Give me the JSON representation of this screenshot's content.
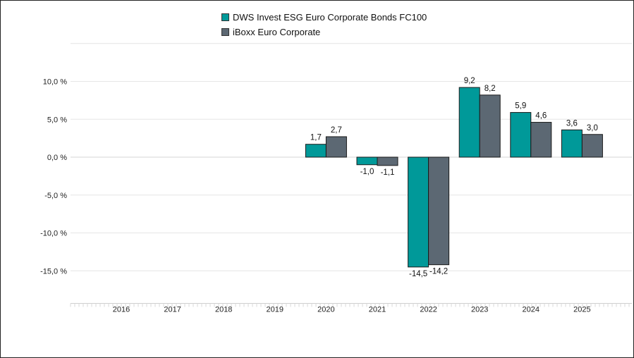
{
  "chart_data": {
    "type": "bar",
    "title": "",
    "xlabel": "",
    "ylabel": "",
    "categories": [
      "2016",
      "2017",
      "2018",
      "2019",
      "2020",
      "2021",
      "2022",
      "2023",
      "2024",
      "2025"
    ],
    "series": [
      {
        "name": "DWS Invest ESG Euro Corporate Bonds FC100",
        "color": "#009999",
        "values": [
          null,
          null,
          null,
          null,
          1.7,
          -1.0,
          -14.5,
          9.2,
          5.9,
          3.6
        ],
        "labels": [
          "",
          "",
          "",
          "",
          "1,7",
          "-1,0",
          "-14,5",
          "9,2",
          "5,9",
          "3,6"
        ]
      },
      {
        "name": "iBoxx Euro Corporate",
        "color": "#5c6873",
        "values": [
          null,
          null,
          null,
          null,
          2.7,
          -1.1,
          -14.2,
          8.2,
          4.6,
          3.0
        ],
        "labels": [
          "",
          "",
          "",
          "",
          "2,7",
          "-1,1",
          "-14,2",
          "8,2",
          "4,6",
          "3,0"
        ]
      }
    ],
    "y_ticks": [
      10,
      5,
      0,
      -5,
      -10,
      -15
    ],
    "y_tick_labels": [
      "10,0 %",
      "5,0 %",
      "0,0 %",
      "-5,0 %",
      "-10,0 %",
      "-15,0 %"
    ],
    "ylim": [
      -19.3,
      15
    ],
    "grid": true,
    "legend": "top-center"
  }
}
